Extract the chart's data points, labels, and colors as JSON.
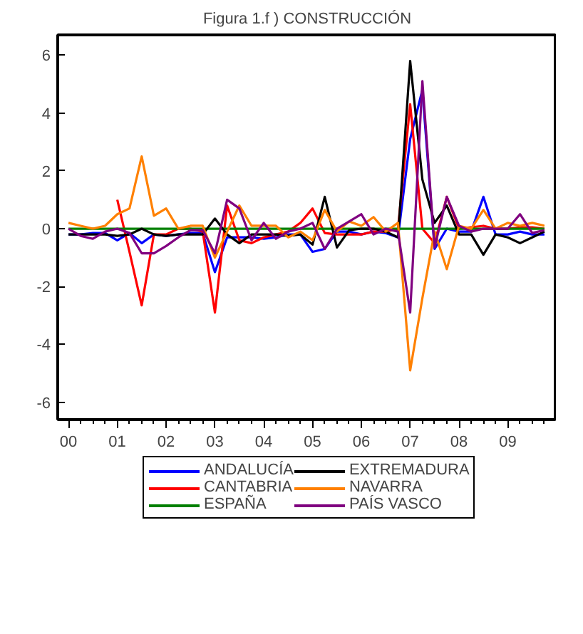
{
  "chart_data": {
    "type": "line",
    "title": "Figura 1.f ) CONSTRUCCIÓN",
    "x": [
      2000,
      2000.25,
      2000.5,
      2000.75,
      2001,
      2001.25,
      2001.5,
      2001.75,
      2002,
      2002.25,
      2002.5,
      2002.75,
      2003,
      2003.25,
      2003.5,
      2003.75,
      2004,
      2004.25,
      2004.5,
      2004.75,
      2005,
      2005.25,
      2005.5,
      2005.75,
      2006,
      2006.25,
      2006.5,
      2006.75,
      2007,
      2007.25,
      2007.5,
      2007.75,
      2008,
      2008.25,
      2008.5,
      2008.75,
      2009,
      2009.25,
      2009.5,
      2009.75
    ],
    "series": [
      {
        "name": "ANDALUCÍA",
        "color": "#0000ff",
        "values": [
          -0.2,
          -0.2,
          -0.15,
          -0.15,
          -0.4,
          -0.15,
          -0.5,
          -0.2,
          -0.25,
          -0.2,
          -0.15,
          -0.15,
          -1.5,
          -0.3,
          -0.3,
          -0.3,
          -0.35,
          -0.3,
          -0.2,
          -0.2,
          -0.8,
          -0.7,
          -0.1,
          -0.1,
          -0.2,
          -0.1,
          -0.15,
          -0.3,
          3.1,
          4.8,
          -0.7,
          0.0,
          -0.1,
          -0.1,
          1.1,
          -0.2,
          -0.2,
          -0.1,
          -0.2,
          -0.2
        ]
      },
      {
        "name": "CANTABRIA",
        "color": "#ff0000",
        "values": [
          null,
          null,
          null,
          null,
          1.0,
          -0.8,
          -2.65,
          -0.2,
          -0.2,
          0.0,
          0.0,
          -0.1,
          -2.9,
          0.8,
          -0.4,
          -0.5,
          -0.3,
          -0.2,
          -0.1,
          0.2,
          0.7,
          -0.15,
          -0.2,
          -0.2,
          -0.2,
          -0.1,
          -0.1,
          0.0,
          4.3,
          0.0,
          -0.5,
          1.1,
          0.0,
          0.05,
          0.1,
          0.0,
          0.0,
          0.05,
          0.05,
          0.0
        ]
      },
      {
        "name": "ESPAÑA",
        "color": "#008000",
        "values": [
          0.0,
          0.0,
          0.0,
          0.0,
          0.0,
          0.0,
          0.0,
          0.0,
          0.0,
          0.0,
          0.0,
          0.0,
          0.0,
          0.0,
          0.0,
          0.0,
          0.0,
          0.0,
          0.0,
          0.0,
          0.0,
          0.0,
          0.0,
          0.0,
          0.0,
          0.0,
          0.0,
          0.0,
          0.0,
          0.0,
          0.0,
          0.0,
          0.0,
          0.0,
          0.0,
          0.0,
          0.0,
          0.0,
          0.0,
          0.0
        ]
      },
      {
        "name": "EXTREMADURA",
        "color": "#000000",
        "values": [
          -0.2,
          -0.2,
          -0.2,
          -0.2,
          -0.25,
          -0.2,
          0.0,
          -0.2,
          -0.25,
          -0.2,
          -0.2,
          -0.2,
          0.35,
          -0.2,
          -0.5,
          -0.2,
          -0.2,
          -0.2,
          -0.25,
          -0.2,
          -0.55,
          1.1,
          -0.65,
          -0.05,
          0.0,
          0.0,
          -0.1,
          -0.3,
          5.8,
          1.7,
          0.2,
          0.8,
          -0.2,
          -0.2,
          -0.9,
          -0.2,
          -0.3,
          -0.5,
          -0.3,
          -0.1
        ]
      },
      {
        "name": "NAVARRA",
        "color": "#ff8000",
        "values": [
          0.2,
          0.1,
          0.0,
          0.1,
          0.5,
          0.7,
          2.5,
          0.45,
          0.7,
          0.0,
          0.1,
          0.1,
          -1.0,
          -0.1,
          0.8,
          0.1,
          0.1,
          0.1,
          -0.3,
          -0.1,
          -0.4,
          0.65,
          -0.1,
          0.25,
          0.1,
          0.4,
          -0.1,
          0.2,
          -4.9,
          -2.4,
          -0.1,
          -1.4,
          0.1,
          0.0,
          0.65,
          0.0,
          0.2,
          0.1,
          0.2,
          0.1
        ]
      },
      {
        "name": "PAÍS VASCO",
        "color": "#800080",
        "values": [
          0.0,
          -0.25,
          -0.35,
          -0.1,
          0.0,
          -0.15,
          -0.85,
          -0.85,
          -0.6,
          -0.3,
          -0.05,
          -0.05,
          -0.85,
          1.0,
          0.7,
          -0.4,
          0.2,
          -0.35,
          -0.1,
          0.0,
          0.2,
          -0.7,
          0.0,
          0.25,
          0.5,
          -0.2,
          0.0,
          -0.1,
          -2.9,
          5.1,
          -0.65,
          1.1,
          0.1,
          -0.1,
          0.0,
          0.0,
          0.0,
          0.5,
          -0.15,
          -0.05
        ]
      }
    ],
    "xlim": [
      1999.78,
      2010.0
    ],
    "xticks": [
      {
        "value": 2000,
        "label": "00"
      },
      {
        "value": 2001,
        "label": "01"
      },
      {
        "value": 2002,
        "label": "02"
      },
      {
        "value": 2003,
        "label": "03"
      },
      {
        "value": 2004,
        "label": "04"
      },
      {
        "value": 2005,
        "label": "05"
      },
      {
        "value": 2006,
        "label": "06"
      },
      {
        "value": 2007,
        "label": "07"
      },
      {
        "value": 2008,
        "label": "08"
      },
      {
        "value": 2009,
        "label": "09"
      }
    ],
    "ylim": [
      -6.6,
      6.7
    ],
    "yticks": [
      -6,
      -4,
      -2,
      0,
      2,
      4,
      6
    ],
    "grid": false,
    "legend": "bottom"
  }
}
